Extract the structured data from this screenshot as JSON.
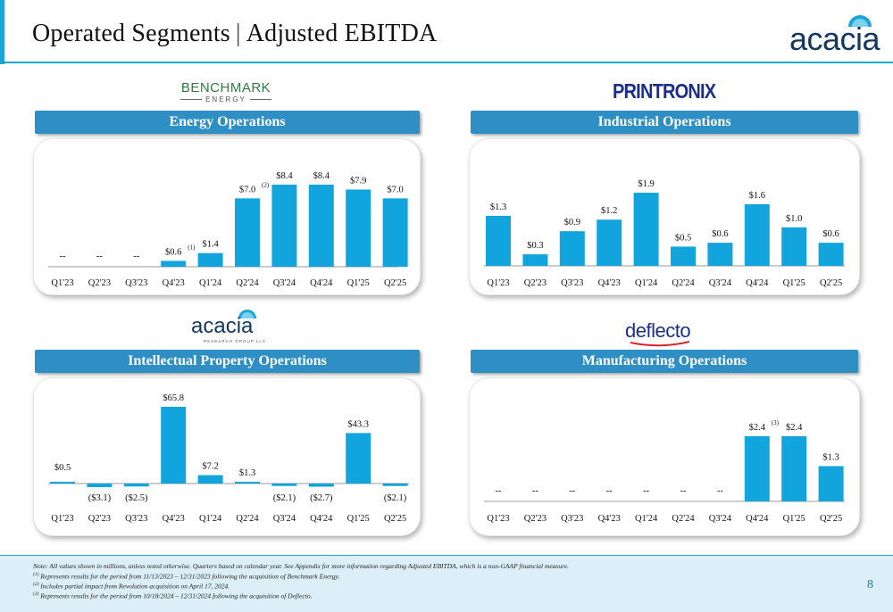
{
  "header": {
    "title_left": "Operated Segments",
    "title_sep": "|",
    "title_right": "Adjusted EBITDA",
    "brand": "acacia"
  },
  "logos": {
    "benchmark": "BENCHMARK",
    "benchmark_sub": "ENERGY",
    "printronix": "PRINTRONIX",
    "acacia": "acacia",
    "acacia_sub": "RESEARCH GROUP LLC",
    "deflecto": "deflecto"
  },
  "colors": {
    "accent": "#1aa7d8",
    "bar": "#12a5dd",
    "panel_header": "#2d8fc4",
    "footer_bg": "#dceef8"
  },
  "chart_data": [
    {
      "id": "energy",
      "type": "bar",
      "title": "Energy Operations",
      "categories": [
        "Q1'23",
        "Q2'23",
        "Q3'23",
        "Q4'23",
        "Q1'24",
        "Q2'24",
        "Q3'24",
        "Q4'24",
        "Q1'25",
        "Q2'25"
      ],
      "values": [
        null,
        null,
        null,
        0.6,
        1.4,
        7.0,
        8.4,
        8.4,
        7.9,
        7.0
      ],
      "labels": [
        "--",
        "--",
        "--",
        "$0.6",
        "$1.4",
        "$7.0",
        "$8.4",
        "$8.4",
        "$7.9",
        "$7.0"
      ],
      "notes": [
        "",
        "",
        "",
        "(1)",
        "",
        "(2)",
        "",
        "",
        "",
        ""
      ],
      "ylim": [
        0,
        8.4
      ]
    },
    {
      "id": "industrial",
      "type": "bar",
      "title": "Industrial Operations",
      "categories": [
        "Q1'23",
        "Q2'23",
        "Q3'23",
        "Q4'23",
        "Q1'24",
        "Q2'24",
        "Q3'24",
        "Q4'24",
        "Q1'25",
        "Q2'25"
      ],
      "values": [
        1.3,
        0.3,
        0.9,
        1.2,
        1.9,
        0.5,
        0.6,
        1.6,
        1.0,
        0.6
      ],
      "labels": [
        "$1.3",
        "$0.3",
        "$0.9",
        "$1.2",
        "$1.9",
        "$0.5",
        "$0.6",
        "$1.6",
        "$1.0",
        "$0.6"
      ],
      "notes": [
        "",
        "",
        "",
        "",
        "",
        "",
        "",
        "",
        "",
        ""
      ],
      "ylim": [
        0,
        1.9
      ]
    },
    {
      "id": "ip",
      "type": "bar",
      "title": "Intellectual Property Operations",
      "categories": [
        "Q1'23",
        "Q2'23",
        "Q3'23",
        "Q4'23",
        "Q1'24",
        "Q2'24",
        "Q3'24",
        "Q4'24",
        "Q1'25",
        "Q2'25"
      ],
      "values": [
        0.5,
        -3.1,
        -2.5,
        65.8,
        7.2,
        1.3,
        -2.1,
        -2.7,
        43.3,
        -2.1
      ],
      "labels": [
        "$0.5",
        "($3.1)",
        "($2.5)",
        "$65.8",
        "$7.2",
        "$1.3",
        "($2.1)",
        "($2.7)",
        "$43.3",
        "($2.1)"
      ],
      "notes": [
        "",
        "",
        "",
        "",
        "",
        "",
        "",
        "",
        "",
        ""
      ],
      "ylim": [
        -3.1,
        65.8
      ]
    },
    {
      "id": "manufacturing",
      "type": "bar",
      "title": "Manufacturing Operations",
      "categories": [
        "Q1'23",
        "Q2'23",
        "Q3'23",
        "Q4'23",
        "Q1'24",
        "Q2'24",
        "Q3'24",
        "Q4'24",
        "Q1'25",
        "Q2'25"
      ],
      "values": [
        null,
        null,
        null,
        null,
        null,
        null,
        null,
        2.4,
        2.4,
        1.3
      ],
      "labels": [
        "--",
        "--",
        "--",
        "--",
        "--",
        "--",
        "--",
        "$2.4",
        "$2.4",
        "$1.3"
      ],
      "notes": [
        "",
        "",
        "",
        "",
        "",
        "",
        "",
        "(3)",
        "",
        ""
      ],
      "ylim": [
        0,
        2.4
      ]
    }
  ],
  "footer": {
    "note": "Note: All values shown in millions, unless noted otherwise. Quarters based on calendar year. See Appendix for more information regarding Adjusted EBITDA, which is a non-GAAP financial measure.",
    "fn1_mark": "(1)",
    "fn1": " Represents results for the period from 11/13/2023 – 12/31/2023 following the acquisition of Benchmark Energy.",
    "fn2_mark": "(2)",
    "fn2": " Includes partial impact from Revolution acquisition on April 17, 2024.",
    "fn3_mark": "(3)",
    "fn3": " Represents results for the period from 10/18/2024 – 12/31/2024 following the acquisition of Deflecto.",
    "page": "8"
  }
}
